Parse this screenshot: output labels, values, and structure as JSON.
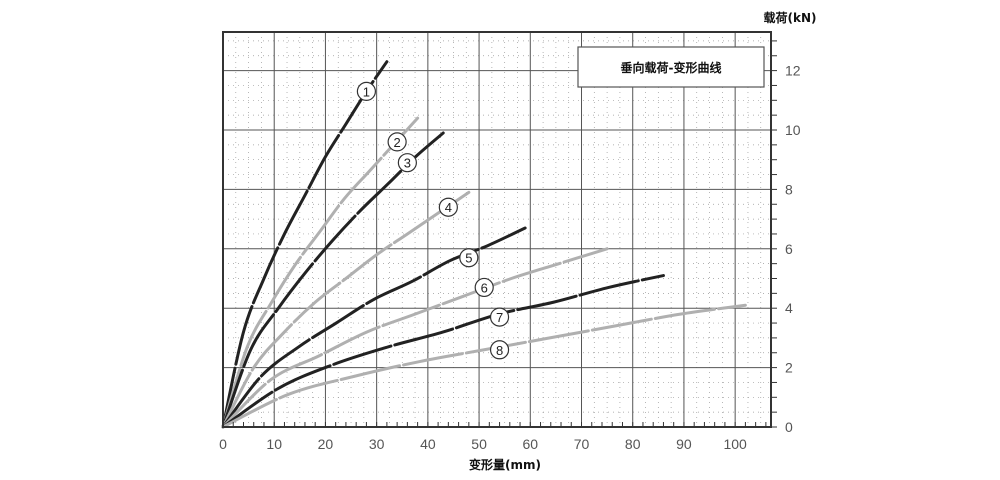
{
  "chart_data": {
    "type": "line",
    "title": "垂向载荷-变形曲线",
    "xlabel": "变形量(mm)",
    "ylabel": "载荷(kN)",
    "xlim": [
      0,
      107
    ],
    "ylim": [
      0,
      13.3
    ],
    "xticks": [
      0,
      10,
      20,
      30,
      40,
      50,
      60,
      70,
      80,
      90,
      100
    ],
    "yticks": [
      0,
      2,
      4,
      6,
      8,
      10,
      12
    ],
    "grid": true,
    "legend": "none",
    "series": [
      {
        "name": "1",
        "color": "#222222",
        "label_at": [
          28,
          11.3
        ],
        "x": [
          0,
          4,
          8,
          12,
          16,
          20,
          24,
          28,
          32
        ],
        "y": [
          0,
          3.2,
          5.0,
          6.5,
          7.8,
          9.1,
          10.2,
          11.3,
          12.3
        ]
      },
      {
        "name": "2",
        "color": "#b0b0b0",
        "label_at": [
          34,
          9.6
        ],
        "x": [
          0,
          4.75,
          9.5,
          14.25,
          19,
          23.75,
          28.5,
          33.25,
          38
        ],
        "y": [
          0,
          2.7,
          4.2,
          5.5,
          6.6,
          7.7,
          8.6,
          9.5,
          10.4
        ]
      },
      {
        "name": "3",
        "color": "#222222",
        "label_at": [
          36,
          8.9
        ],
        "x": [
          0,
          5.4,
          10.8,
          16.1,
          21.5,
          26.9,
          32.3,
          37.6,
          43
        ],
        "y": [
          0,
          2.6,
          4.0,
          5.2,
          6.3,
          7.3,
          8.2,
          9.1,
          9.9
        ]
      },
      {
        "name": "4",
        "color": "#b0b0b0",
        "label_at": [
          44,
          7.4
        ],
        "x": [
          0,
          6,
          12,
          18,
          24,
          30,
          36,
          42,
          48
        ],
        "y": [
          0,
          2.0,
          3.2,
          4.2,
          5.0,
          5.8,
          6.5,
          7.2,
          7.9
        ]
      },
      {
        "name": "5",
        "color": "#222222",
        "label_at": [
          48,
          5.7
        ],
        "x": [
          0,
          7.4,
          14.8,
          22.1,
          29.5,
          36.9,
          44.3,
          51.6,
          59
        ],
        "y": [
          0,
          1.7,
          2.7,
          3.5,
          4.3,
          4.9,
          5.6,
          6.1,
          6.7
        ]
      },
      {
        "name": "6",
        "color": "#b0b0b0",
        "label_at": [
          51,
          4.7
        ],
        "x": [
          0,
          9.4,
          18.8,
          28.1,
          37.5,
          46.9,
          56.3,
          65.6,
          75
        ],
        "y": [
          0,
          1.6,
          2.4,
          3.2,
          3.8,
          4.4,
          5.0,
          5.5,
          6.0
        ]
      },
      {
        "name": "7",
        "color": "#222222",
        "label_at": [
          54,
          3.7
        ],
        "x": [
          0,
          10.8,
          21.5,
          32.3,
          43,
          53.8,
          64.5,
          75.3,
          86
        ],
        "y": [
          0,
          1.3,
          2.1,
          2.7,
          3.2,
          3.8,
          4.2,
          4.7,
          5.1
        ]
      },
      {
        "name": "8",
        "color": "#b0b0b0",
        "label_at": [
          54,
          2.6
        ],
        "x": [
          0,
          12.8,
          25.5,
          38.3,
          51,
          63.8,
          76.5,
          89.3,
          102
        ],
        "y": [
          0,
          1.1,
          1.7,
          2.2,
          2.6,
          3.0,
          3.4,
          3.8,
          4.1
        ]
      }
    ]
  }
}
